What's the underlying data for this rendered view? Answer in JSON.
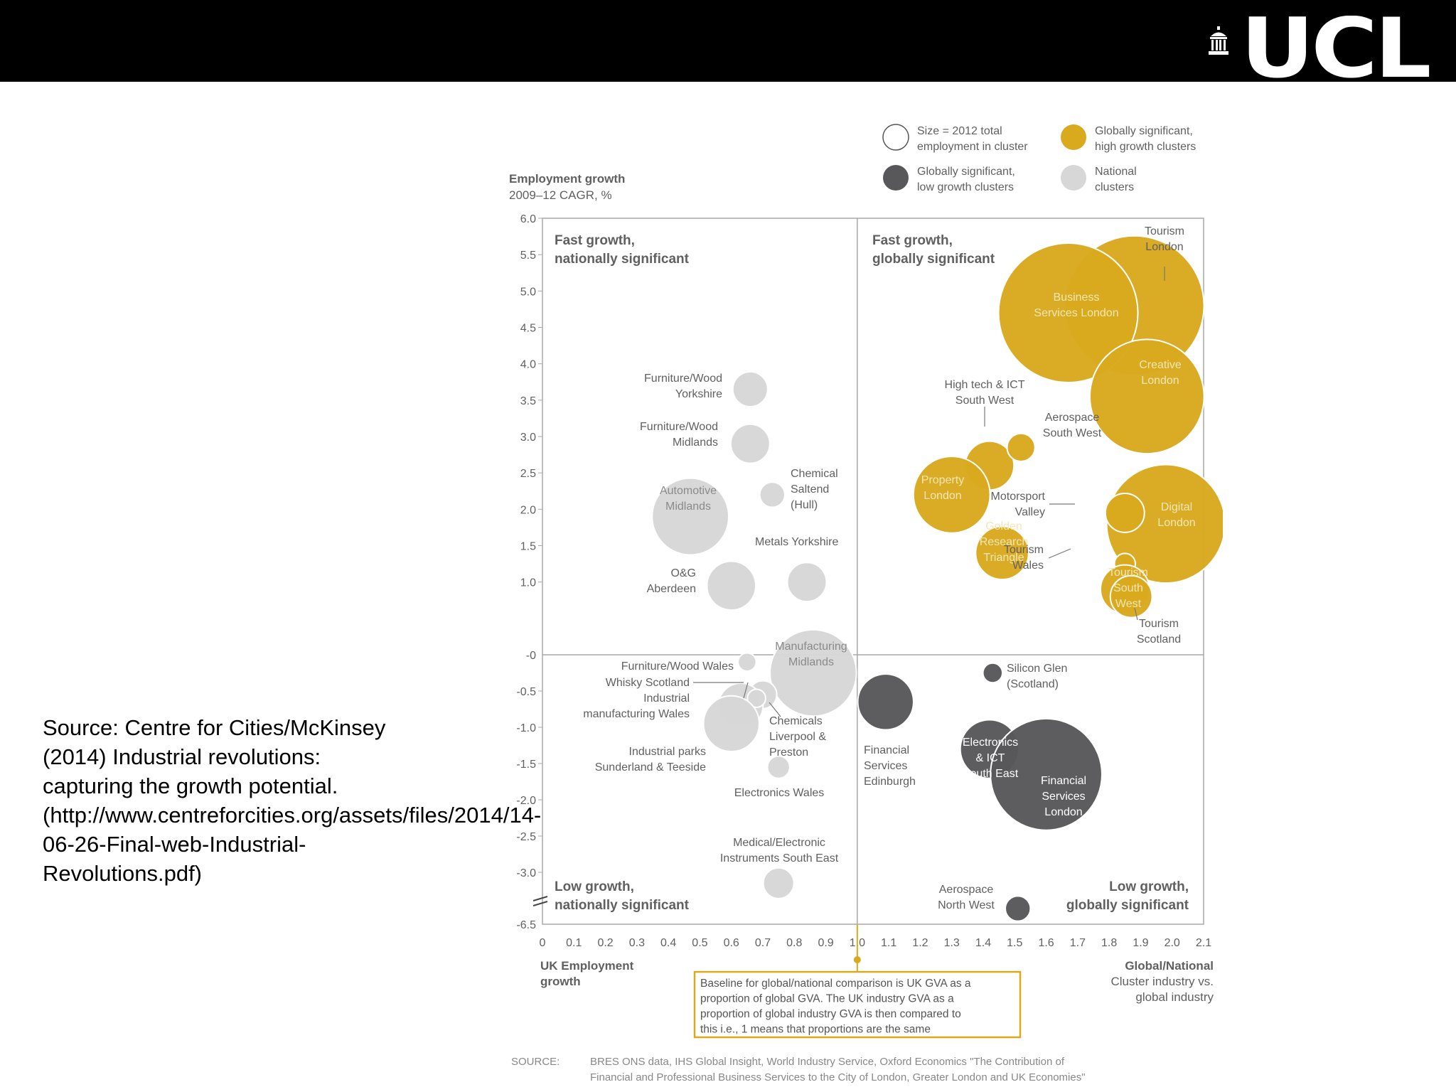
{
  "header": {
    "logo_text": "UCL",
    "logo_icon": "portico-icon"
  },
  "source_note": "Source: Centre for Cities/McKinsey (2014) Industrial revolutions: capturing the growth potential. (http://www.centreforcities.org/assets/files/2014/14-06-26-Final-web-Industrial-Revolutions.pdf)",
  "colors": {
    "gold": "#D9A91E",
    "dark": "#58585A",
    "light": "#D7D7D7",
    "frame": "#A8A8A8",
    "label": "#606060",
    "box_border": "#D9A91E"
  },
  "chart_data": {
    "type": "scatter",
    "title": "",
    "ylabel": "Employment growth",
    "ylabel_sub": "2009–12 CAGR, %",
    "xlabel": "UK Employment growth",
    "xlabel_right": "Global/National Cluster industry vs. global industry",
    "xlim": [
      0,
      2.1
    ],
    "x_ticks": [
      "0",
      "0.1",
      "0.2",
      "0.3",
      "0.4",
      "0.5",
      "0.6",
      "0.7",
      "0.8",
      "0.9",
      "1.0",
      "1.1",
      "1.2",
      "1.3",
      "1.4",
      "1.5",
      "1.6",
      "1.7",
      "1.8",
      "1.9",
      "2.0",
      "2.1"
    ],
    "y_ticks_upper": [
      "6.0",
      "5.5",
      "5.0",
      "4.5",
      "4.0",
      "3.5",
      "3.0",
      "2.5",
      "2.0",
      "1.5",
      "1.0"
    ],
    "y_tick_zero": "-0",
    "y_ticks_lower": [
      "-0.5",
      "-1.0",
      "-1.5",
      "-2.0",
      "-2.5",
      "-3.0"
    ],
    "y_tick_bottom": "-6.5",
    "y_axis_break": true,
    "quadrants": [
      {
        "position": "top-left",
        "line1": "Fast growth,",
        "line2": "nationally significant"
      },
      {
        "position": "top-right",
        "line1": "Fast growth,",
        "line2": "globally significant"
      },
      {
        "position": "bottom-left",
        "line1": "Low growth,",
        "line2": "nationally significant"
      },
      {
        "position": "bottom-right",
        "line1": "Low growth,",
        "line2": "globally significant"
      }
    ],
    "legend": [
      {
        "label": "Size = 2012 total employment in cluster",
        "category": "size"
      },
      {
        "label": "Globally significant, high growth clusters",
        "category": "gold"
      },
      {
        "label": "Globally significant, low growth clusters",
        "category": "dark"
      },
      {
        "label": "National clusters",
        "category": "light"
      }
    ],
    "series": [
      {
        "name": "Tourism London",
        "x": 1.88,
        "y": 4.8,
        "category": "gold",
        "size": 100
      },
      {
        "name": "Business Services London",
        "x": 1.67,
        "y": 4.7,
        "category": "gold",
        "size": 100
      },
      {
        "name": "Creative London",
        "x": 1.92,
        "y": 3.55,
        "category": "gold",
        "size": 82
      },
      {
        "name": "High tech & ICT South West",
        "x": 1.42,
        "y": 2.6,
        "category": "gold",
        "size": 35
      },
      {
        "name": "Aerospace South West",
        "x": 1.52,
        "y": 2.85,
        "category": "gold",
        "size": 20
      },
      {
        "name": "Property London",
        "x": 1.3,
        "y": 2.2,
        "category": "gold",
        "size": 55
      },
      {
        "name": "Golden Research Triangle",
        "x": 1.46,
        "y": 1.4,
        "category": "gold",
        "size": 38
      },
      {
        "name": "Digital London",
        "x": 1.98,
        "y": 1.8,
        "category": "gold",
        "size": 85
      },
      {
        "name": "Motorsport Valley",
        "x": 1.85,
        "y": 1.95,
        "category": "gold",
        "size": 28
      },
      {
        "name": "Tourism Wales",
        "x": 1.85,
        "y": 1.25,
        "category": "gold",
        "size": 15
      },
      {
        "name": "Tourism South West",
        "x": 1.85,
        "y": 0.9,
        "category": "gold",
        "size": 35
      },
      {
        "name": "Tourism Scotland",
        "x": 1.87,
        "y": 0.8,
        "category": "gold",
        "size": 30
      },
      {
        "name": "Furniture/Wood Yorkshire",
        "x": 0.66,
        "y": 3.65,
        "category": "light",
        "size": 25
      },
      {
        "name": "Furniture/Wood Midlands",
        "x": 0.66,
        "y": 2.9,
        "category": "light",
        "size": 28
      },
      {
        "name": "Automotive Midlands",
        "x": 0.47,
        "y": 1.9,
        "category": "light",
        "size": 55
      },
      {
        "name": "Chemical Saltend (Hull)",
        "x": 0.73,
        "y": 2.2,
        "category": "light",
        "size": 18
      },
      {
        "name": "Metals Yorkshire",
        "x": 0.84,
        "y": 1.0,
        "category": "light",
        "size": 28
      },
      {
        "name": "O&G Aberdeen",
        "x": 0.6,
        "y": 0.95,
        "category": "light",
        "size": 35
      },
      {
        "name": "Manufacturing Midlands",
        "x": 0.86,
        "y": -0.25,
        "category": "light",
        "size": 62
      },
      {
        "name": "Furniture/Wood Wales",
        "x": 0.65,
        "y": -0.1,
        "category": "light",
        "size": 13
      },
      {
        "name": "Whisky Scotland",
        "x": 0.7,
        "y": -0.55,
        "category": "light",
        "size": 20
      },
      {
        "name": "Industrial manufacturing Wales",
        "x": 0.63,
        "y": -0.7,
        "category": "light",
        "size": 32
      },
      {
        "name": "Chemicals Liverpool & Preston",
        "x": 0.68,
        "y": -0.6,
        "category": "light",
        "size": 13
      },
      {
        "name": "Industrial parks Sunderland & Teeside",
        "x": 0.6,
        "y": -0.95,
        "category": "light",
        "size": 40
      },
      {
        "name": "Electronics Wales",
        "x": 0.75,
        "y": -1.55,
        "category": "light",
        "size": 16
      },
      {
        "name": "Medical/Electronic Instruments South East",
        "x": 0.75,
        "y": -3.15,
        "category": "light",
        "size": 22
      },
      {
        "name": "Financial Services Edinburgh",
        "x": 1.09,
        "y": -0.65,
        "category": "dark",
        "size": 40
      },
      {
        "name": "Silicon Glen (Scotland)",
        "x": 1.43,
        "y": -0.25,
        "category": "dark",
        "size": 14
      },
      {
        "name": "Electronics & ICT South East",
        "x": 1.42,
        "y": -1.3,
        "category": "dark",
        "size": 42
      },
      {
        "name": "Financial Services London",
        "x": 1.6,
        "y": -1.65,
        "category": "dark",
        "size": 80
      },
      {
        "name": "Aerospace North West",
        "x": 1.51,
        "y": -3.5,
        "category": "dark",
        "size": 18
      }
    ],
    "annotation": "Baseline for global/national comparison is UK GVA as a proportion of global GVA. The UK industry GVA as a proportion of global industry GVA is then compared to this i.e., 1 means that proportions are the same",
    "source_label": "SOURCE:",
    "source_text": "BRES ONS data, IHS Global Insight, World Industry Service, Oxford Economics \"The Contribution of Financial and Professional Business Services to the City of London, Greater London and UK Economies\""
  }
}
